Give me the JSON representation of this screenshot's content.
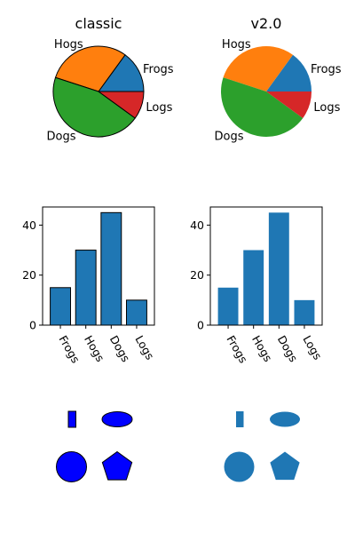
{
  "chart_data": [
    {
      "type": "pie",
      "title": "classic",
      "style": "classic",
      "labels": [
        "Frogs",
        "Hogs",
        "Dogs",
        "Logs"
      ],
      "values": [
        15,
        30,
        45,
        10
      ],
      "colors": [
        "#1f77b4",
        "#ff7f0e",
        "#2ca02c",
        "#d62728"
      ],
      "edgecolor": "#000000"
    },
    {
      "type": "pie",
      "title": "v2.0",
      "style": "v2.0",
      "labels": [
        "Frogs",
        "Hogs",
        "Dogs",
        "Logs"
      ],
      "values": [
        15,
        30,
        45,
        10
      ],
      "colors": [
        "#1f77b4",
        "#ff7f0e",
        "#2ca02c",
        "#d62728"
      ],
      "edgecolor": null
    },
    {
      "type": "bar",
      "style": "classic",
      "categories": [
        "Frogs",
        "Hogs",
        "Dogs",
        "Logs"
      ],
      "values": [
        15,
        30,
        45,
        10
      ],
      "color": "#1f77b4",
      "edgecolor": "#000000",
      "ylim": [
        0,
        47.25
      ],
      "yticks": [
        0,
        20,
        40
      ]
    },
    {
      "type": "bar",
      "style": "v2.0",
      "categories": [
        "Frogs",
        "Hogs",
        "Dogs",
        "Logs"
      ],
      "values": [
        15,
        30,
        45,
        10
      ],
      "color": "#1f77b4",
      "edgecolor": null,
      "ylim": [
        0,
        47.25
      ],
      "yticks": [
        0,
        20,
        40
      ]
    }
  ],
  "patches": [
    {
      "style": "classic",
      "fill": "#0000ff",
      "edgecolor": "#000000",
      "shapes": [
        "rectangle",
        "ellipse",
        "circle",
        "pentagon"
      ]
    },
    {
      "style": "v2.0",
      "fill": "#1f77b4",
      "edgecolor": null,
      "shapes": [
        "rectangle",
        "ellipse",
        "circle",
        "pentagon"
      ]
    }
  ]
}
